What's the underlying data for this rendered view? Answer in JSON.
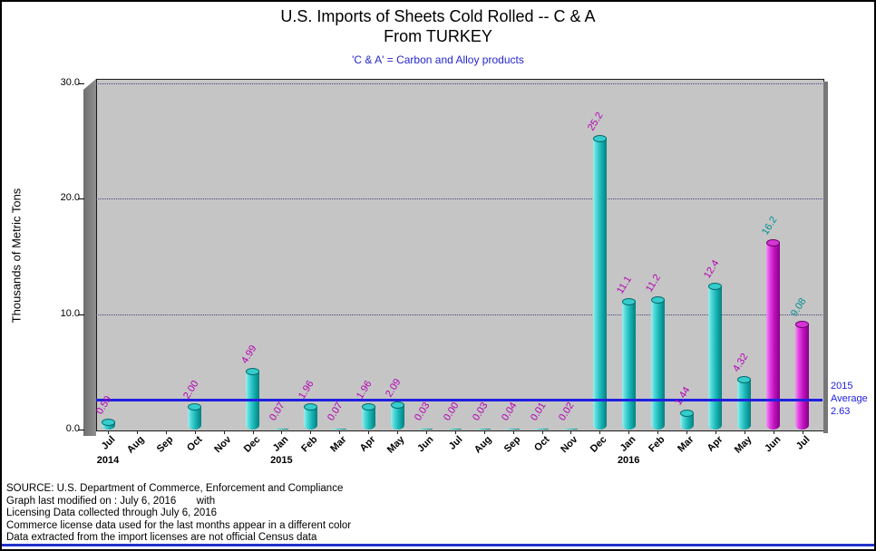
{
  "colors": {
    "teal_bar": "#16B2B2",
    "magenta_bar": "#BC10BC",
    "teal_label": "#008E8E",
    "magenta_label": "#B400B4",
    "average_line": "#2020DF",
    "subtitle_text": "#2525CC",
    "panel_bg": "#C5C5C5"
  },
  "chart_data": {
    "type": "bar",
    "title": "U.S. Imports of Sheets Cold Rolled -- C & A",
    "title_line2": "From TURKEY",
    "subtitle": "'C & A' = Carbon and Alloy products",
    "ylabel": "Thousands of Metric Tons",
    "ylim": [
      0,
      30
    ],
    "y_ticks": [
      0,
      10,
      20,
      30
    ],
    "y_gridlines": [
      10,
      20,
      30
    ],
    "average": 2.63,
    "average_label_lines": [
      "2015",
      "Average",
      "2.63"
    ],
    "year_markers": [
      {
        "index": 0,
        "label": "2014"
      },
      {
        "index": 6,
        "label": "2015"
      },
      {
        "index": 18,
        "label": "2016"
      }
    ],
    "points": [
      {
        "month": "Jul",
        "value": 0.59,
        "label": "0.59",
        "highlight": false
      },
      {
        "month": "Aug",
        "value": null,
        "label": "",
        "highlight": false
      },
      {
        "month": "Sep",
        "value": null,
        "label": "",
        "highlight": false
      },
      {
        "month": "Oct",
        "value": 2.0,
        "label": "2.00",
        "highlight": false
      },
      {
        "month": "Nov",
        "value": null,
        "label": "",
        "highlight": false
      },
      {
        "month": "Dec",
        "value": 4.99,
        "label": "4.99",
        "highlight": false
      },
      {
        "month": "Jan",
        "value": 0.07,
        "label": "0.07",
        "highlight": false
      },
      {
        "month": "Feb",
        "value": 1.96,
        "label": "1.96",
        "highlight": false
      },
      {
        "month": "Mar",
        "value": 0.07,
        "label": "0.07",
        "highlight": false
      },
      {
        "month": "Apr",
        "value": 1.96,
        "label": "1.96",
        "highlight": false
      },
      {
        "month": "May",
        "value": 2.09,
        "label": "2.09",
        "highlight": false
      },
      {
        "month": "Jun",
        "value": 0.03,
        "label": "0.03",
        "highlight": false
      },
      {
        "month": "Jul",
        "value": 0.0,
        "label": "0.00",
        "highlight": false
      },
      {
        "month": "Aug",
        "value": 0.03,
        "label": "0.03",
        "highlight": false
      },
      {
        "month": "Sep",
        "value": 0.04,
        "label": "0.04",
        "highlight": false
      },
      {
        "month": "Oct",
        "value": 0.01,
        "label": "0.01",
        "highlight": false
      },
      {
        "month": "Nov",
        "value": 0.02,
        "label": "0.02",
        "highlight": false
      },
      {
        "month": "Dec",
        "value": 25.2,
        "label": "25.2",
        "highlight": false
      },
      {
        "month": "Jan",
        "value": 11.1,
        "label": "11.1",
        "highlight": false
      },
      {
        "month": "Feb",
        "value": 11.2,
        "label": "11.2",
        "highlight": false
      },
      {
        "month": "Mar",
        "value": 1.44,
        "label": "1.44",
        "highlight": false
      },
      {
        "month": "Apr",
        "value": 12.4,
        "label": "12.4",
        "highlight": false
      },
      {
        "month": "May",
        "value": 4.32,
        "label": "4.32",
        "highlight": false
      },
      {
        "month": "Jun",
        "value": 16.2,
        "label": "16.2",
        "highlight": true
      },
      {
        "month": "Jul",
        "value": 9.08,
        "label": "9.08",
        "highlight": true
      }
    ]
  },
  "footer": {
    "lines": [
      "SOURCE: U.S. Department of Commerce, Enforcement and Compliance",
      "Graph last modified on : July 6, 2016       with",
      "Licensing Data collected through July 6, 2016",
      "Commerce license data used for the last months appear in a different color",
      "Data extracted from the import licenses are not official Census data"
    ]
  }
}
